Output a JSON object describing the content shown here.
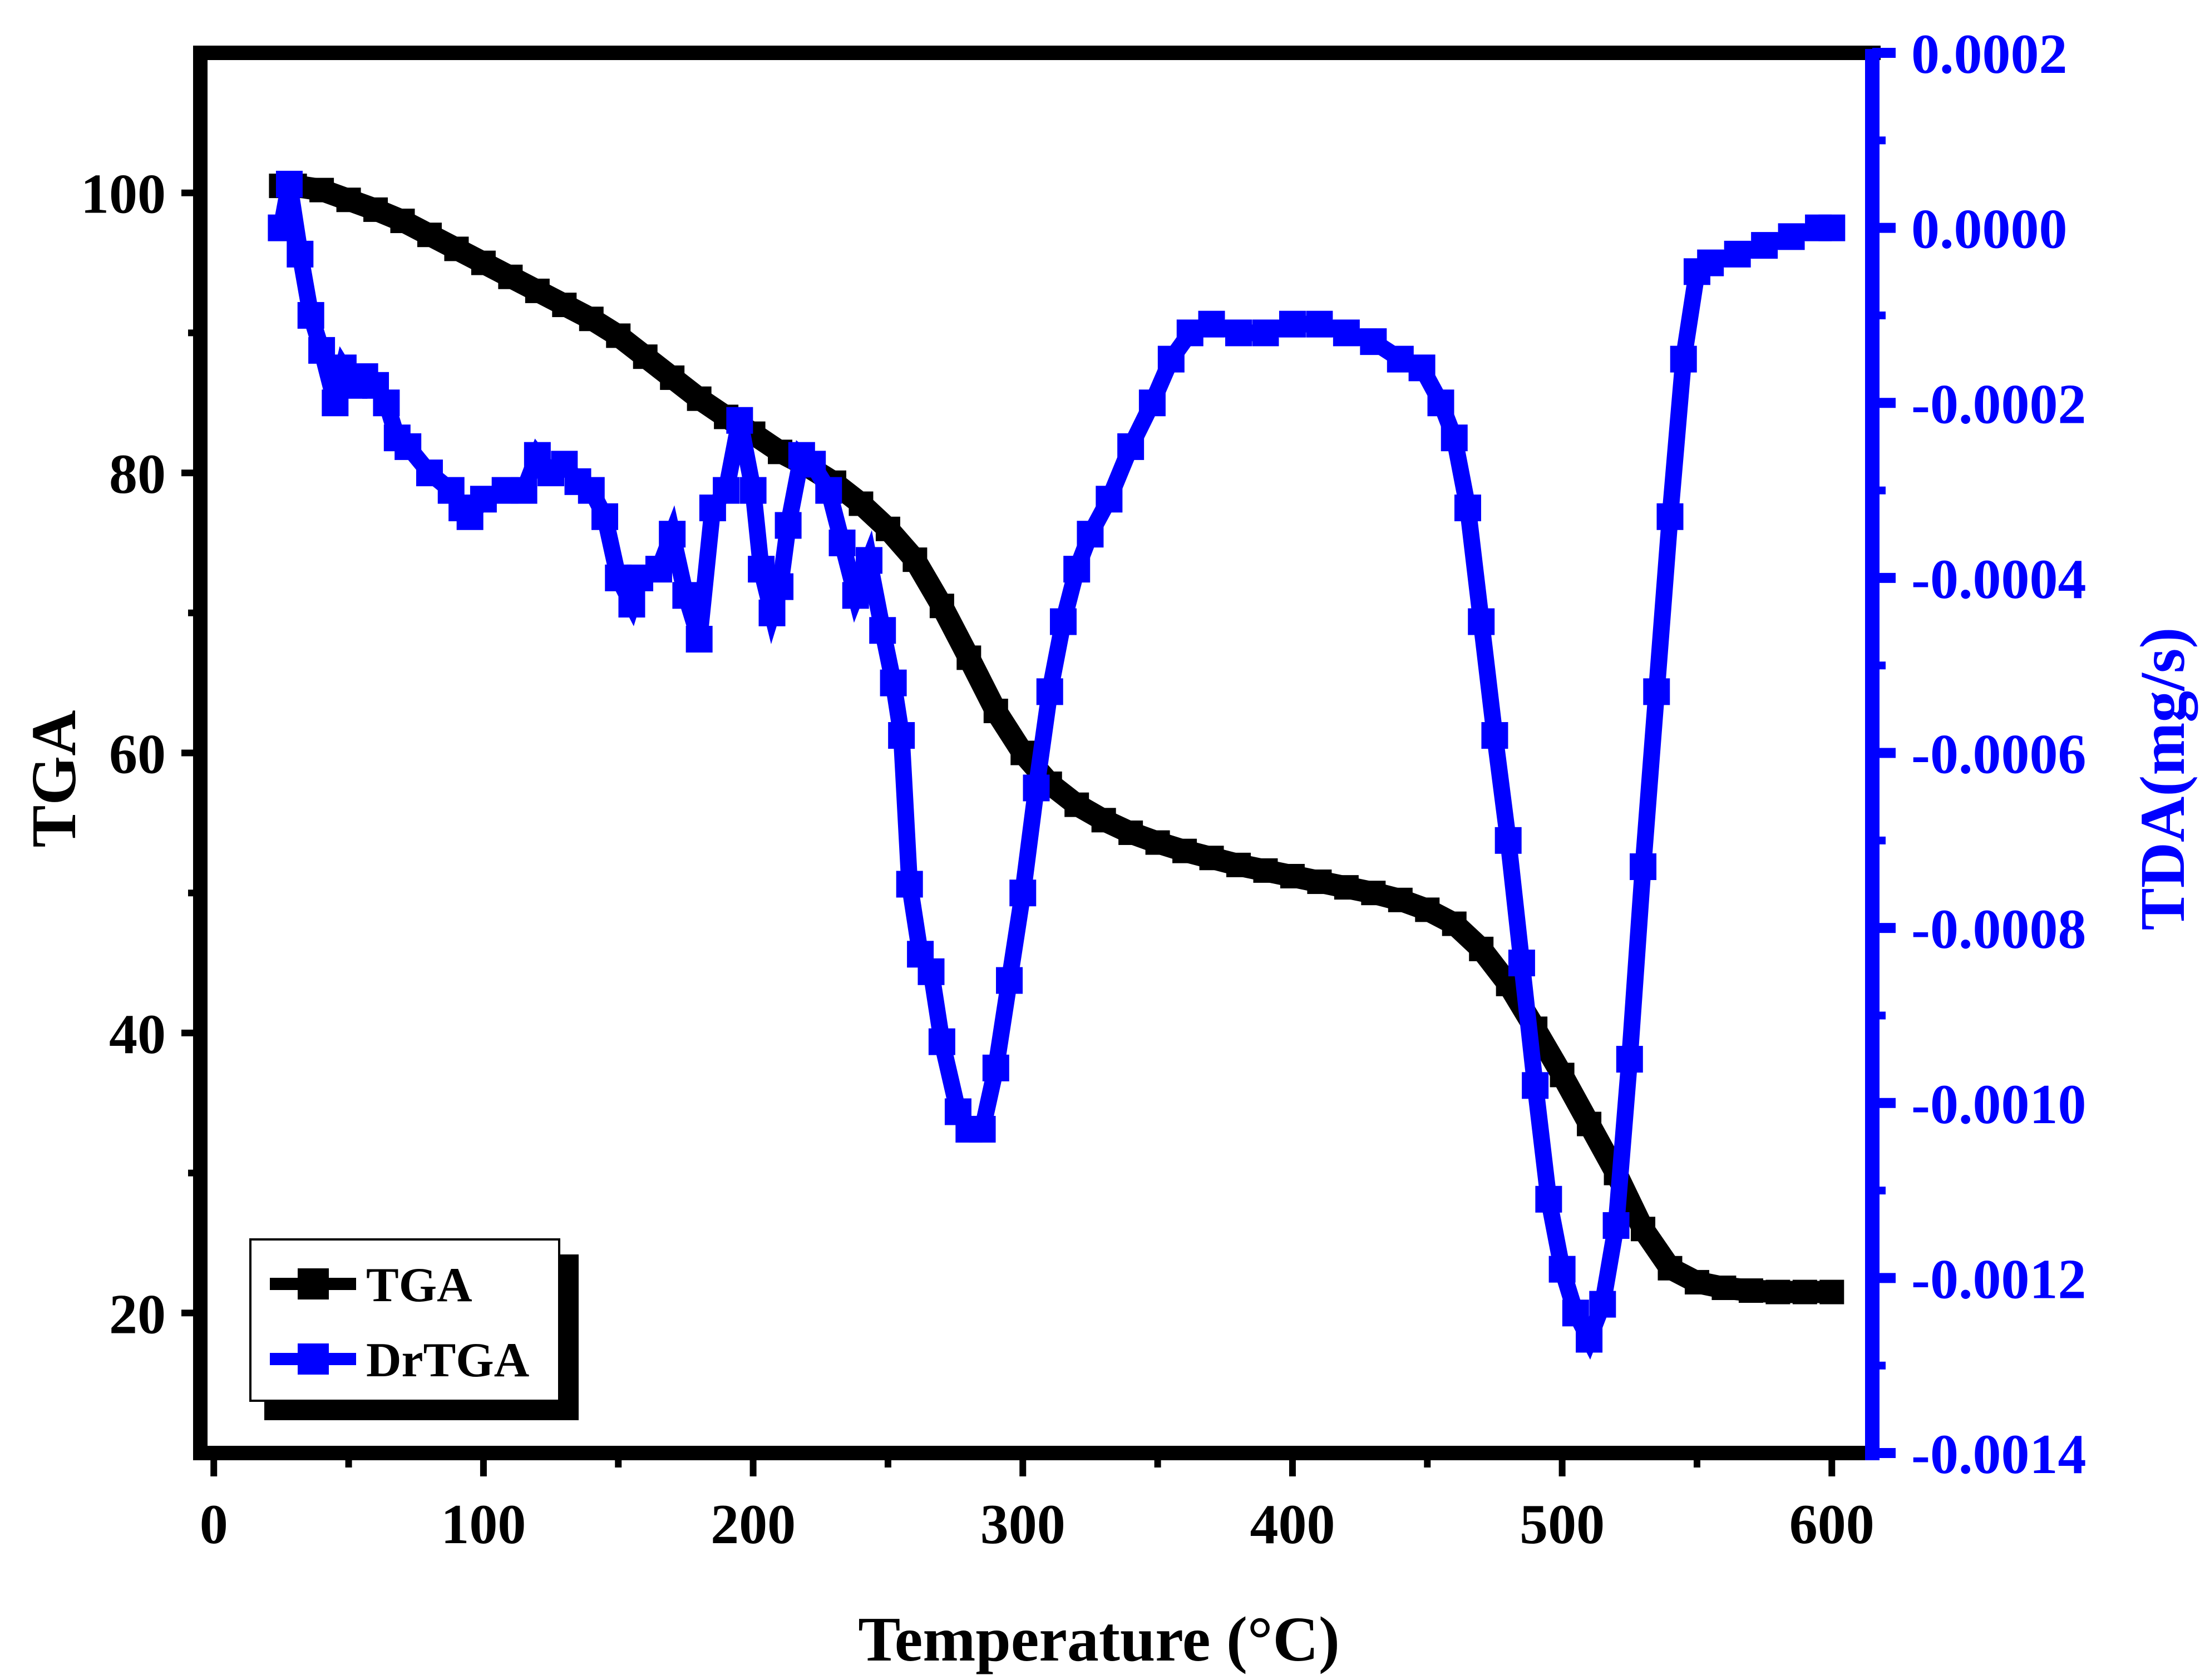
{
  "chart_data": {
    "type": "line",
    "xlabel": "Temperature (°C)",
    "ylabel": "TGA",
    "y2label": "TDA(mg/s)",
    "xlim": [
      -5,
      615
    ],
    "ylim": [
      10,
      110
    ],
    "y2lim": [
      -0.0014,
      0.0002
    ],
    "x_ticks": [
      0,
      100,
      200,
      300,
      400,
      500,
      600
    ],
    "x_tick_labels": [
      "0",
      "100",
      "200",
      "300",
      "400",
      "500",
      "600"
    ],
    "y_ticks": [
      20,
      40,
      60,
      80,
      100
    ],
    "y_tick_labels": [
      "20",
      "40",
      "60",
      "80",
      "100"
    ],
    "y2_ticks": [
      0.0002,
      0.0,
      -0.0002,
      -0.0004,
      -0.0006,
      -0.0008,
      -0.001,
      -0.0012,
      -0.0014
    ],
    "y2_tick_labels": [
      "0.0002",
      "0.0000",
      "-0.0002",
      "-0.0004",
      "-0.0006",
      "-0.0008",
      "-0.0010",
      "-0.0012",
      "-0.0014"
    ],
    "legend": {
      "position": "bottom-left",
      "entries": [
        "TGA",
        "DrTGA"
      ]
    },
    "colors": {
      "tga": "#000000",
      "drtga": "#0000ff",
      "axis": "#000000",
      "right_axis": "#0000ff"
    },
    "series": [
      {
        "name": "TGA",
        "axis": "left",
        "x": [
          25,
          30,
          40,
          50,
          60,
          70,
          80,
          90,
          100,
          110,
          120,
          130,
          140,
          150,
          160,
          170,
          180,
          190,
          200,
          210,
          220,
          230,
          240,
          250,
          260,
          270,
          280,
          290,
          300,
          310,
          320,
          330,
          340,
          350,
          360,
          370,
          380,
          390,
          400,
          410,
          420,
          430,
          440,
          450,
          460,
          470,
          480,
          490,
          500,
          510,
          520,
          530,
          540,
          550,
          560,
          570,
          580,
          590,
          600
        ],
        "values": [
          100.5,
          100.5,
          100.2,
          99.5,
          98.8,
          98.0,
          97.0,
          96.0,
          95.0,
          94.0,
          93.0,
          92.0,
          91.0,
          89.8,
          88.3,
          86.8,
          85.3,
          84.0,
          82.8,
          81.5,
          80.5,
          79.3,
          77.8,
          76.0,
          73.8,
          70.5,
          66.8,
          63.0,
          60.0,
          57.8,
          56.3,
          55.2,
          54.3,
          53.6,
          53.0,
          52.5,
          52.0,
          51.6,
          51.2,
          50.8,
          50.4,
          50.0,
          49.5,
          48.8,
          47.8,
          46.0,
          43.5,
          40.3,
          37.0,
          33.5,
          30.0,
          26.0,
          23.2,
          22.2,
          21.8,
          21.6,
          21.5,
          21.5,
          21.5
        ]
      },
      {
        "name": "DrTGA",
        "axis": "right",
        "x": [
          25,
          28,
          32,
          36,
          40,
          45,
          48,
          52,
          56,
          60,
          64,
          68,
          72,
          80,
          88,
          92,
          95,
          100,
          108,
          115,
          120,
          125,
          130,
          135,
          140,
          145,
          150,
          155,
          158,
          165,
          170,
          175,
          180,
          185,
          190,
          195,
          200,
          203,
          207,
          210,
          213,
          218,
          222,
          228,
          233,
          238,
          243,
          248,
          252,
          255,
          258,
          262,
          266,
          270,
          276,
          280,
          285,
          290,
          295,
          300,
          305,
          310,
          315,
          320,
          325,
          332,
          340,
          348,
          355,
          362,
          370,
          380,
          390,
          400,
          410,
          420,
          430,
          440,
          448,
          455,
          460,
          465,
          470,
          475,
          480,
          485,
          490,
          495,
          500,
          505,
          510,
          515,
          520,
          525,
          530,
          535,
          540,
          545,
          550,
          555,
          565,
          575,
          585,
          595,
          600
        ],
        "values": [
          0.0,
          5e-05,
          -3e-05,
          -0.0001,
          -0.00014,
          -0.0002,
          -0.00016,
          -0.00018,
          -0.00017,
          -0.00018,
          -0.0002,
          -0.00024,
          -0.00025,
          -0.00028,
          -0.0003,
          -0.00032,
          -0.00033,
          -0.00031,
          -0.0003,
          -0.0003,
          -0.00026,
          -0.00028,
          -0.00027,
          -0.00029,
          -0.0003,
          -0.00033,
          -0.0004,
          -0.00043,
          -0.0004,
          -0.00039,
          -0.00035,
          -0.00042,
          -0.00047,
          -0.00032,
          -0.0003,
          -0.00022,
          -0.0003,
          -0.00039,
          -0.00044,
          -0.00041,
          -0.00034,
          -0.00026,
          -0.00027,
          -0.0003,
          -0.00036,
          -0.00042,
          -0.00038,
          -0.00046,
          -0.00052,
          -0.00058,
          -0.00075,
          -0.00083,
          -0.00085,
          -0.00093,
          -0.00101,
          -0.00103,
          -0.00103,
          -0.00096,
          -0.00086,
          -0.00076,
          -0.00064,
          -0.00053,
          -0.00045,
          -0.00039,
          -0.00035,
          -0.00031,
          -0.00025,
          -0.0002,
          -0.00015,
          -0.00012,
          -0.00011,
          -0.00012,
          -0.00012,
          -0.00011,
          -0.00011,
          -0.00012,
          -0.00013,
          -0.00015,
          -0.00016,
          -0.0002,
          -0.00024,
          -0.00032,
          -0.00045,
          -0.00058,
          -0.0007,
          -0.00084,
          -0.00098,
          -0.00111,
          -0.00119,
          -0.00124,
          -0.00127,
          -0.00123,
          -0.00114,
          -0.00095,
          -0.00073,
          -0.00053,
          -0.00033,
          -0.00015,
          -5e-05,
          -4e-05,
          -3e-05,
          -2e-05,
          -1e-05,
          0.0,
          0.0
        ]
      }
    ]
  }
}
